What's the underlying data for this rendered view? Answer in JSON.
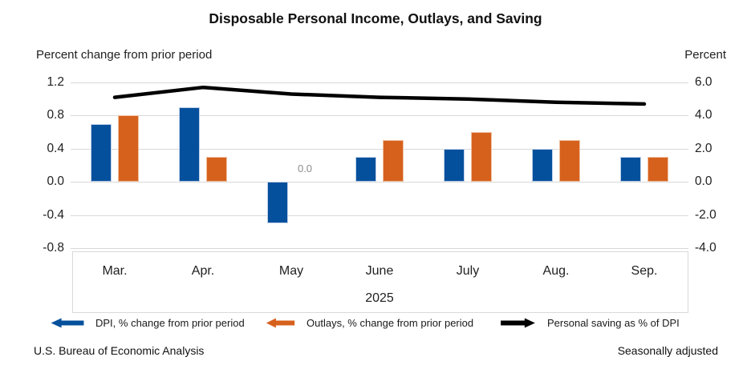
{
  "title": "Disposable Personal Income, Outlays, and Saving",
  "axes": {
    "left_caption": "Percent change from prior period",
    "right_caption": "Percent"
  },
  "x_axis": {
    "year_label": "2025"
  },
  "legend": {
    "items": [
      {
        "label": "DPI, % change from prior period",
        "marker": "left-arrow",
        "color": "#05509c"
      },
      {
        "label": "Outlays, % change from prior period",
        "marker": "left-arrow",
        "color": "#d6611d"
      },
      {
        "label": "Personal saving as % of DPI",
        "marker": "right-arrow",
        "color": "#000000"
      }
    ]
  },
  "footer": {
    "source": "U.S. Bureau of Economic Analysis",
    "note": "Seasonally adjusted"
  },
  "chart_data": {
    "type": "bar",
    "categories": [
      "Mar.",
      "Apr.",
      "May",
      "June",
      "July",
      "Aug.",
      "Sep."
    ],
    "series": [
      {
        "name": "DPI, % change from prior period",
        "type": "bar",
        "axis": "left",
        "color": "#05509c",
        "border": "#bdd0e9",
        "values": [
          0.7,
          0.9,
          -0.5,
          0.3,
          0.4,
          0.4,
          0.3
        ]
      },
      {
        "name": "Outlays, % change from prior period",
        "type": "bar",
        "axis": "left",
        "color": "#d6611d",
        "border": "#f0c09e",
        "values": [
          0.8,
          0.3,
          0.0,
          0.5,
          0.6,
          0.5,
          0.3
        ]
      },
      {
        "name": "Personal saving as % of DPI",
        "type": "line",
        "axis": "right",
        "color": "#000000",
        "values": [
          5.1,
          5.7,
          5.3,
          5.1,
          5.0,
          4.8,
          4.7
        ]
      }
    ],
    "left_axis": {
      "title": "Percent change from prior period",
      "max": 1.2,
      "min": -0.8,
      "ticks": [
        1.2,
        0.8,
        0.4,
        0.0,
        -0.4,
        -0.8
      ]
    },
    "right_axis": {
      "title": "Percent",
      "max": 6.0,
      "min": -4.0,
      "ticks": [
        6.0,
        4.0,
        2.0,
        0.0,
        -2.0,
        -4.0
      ]
    },
    "annotations": [
      {
        "text": "0.0",
        "category": "May",
        "series": "Outlays, % change from prior period",
        "color": "#8c8c8c"
      }
    ],
    "grid": true,
    "legend_position": "bottom",
    "gridline_color": "#d9d9d9"
  }
}
